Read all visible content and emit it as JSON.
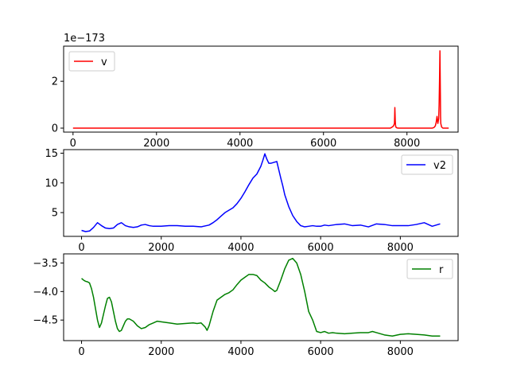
{
  "chart_data": [
    {
      "type": "line",
      "offset_label": "1e−173",
      "legend_position": "top-left",
      "series": [
        {
          "name": "v",
          "color": "#ff0000",
          "x": [
            0,
            7600,
            7620,
            7650,
            7680,
            7700,
            7705,
            7710,
            7715,
            7720,
            7725,
            7730,
            7740,
            7760,
            7800,
            8600,
            8640,
            8660,
            8680,
            8700,
            8720,
            8740,
            8760,
            8770,
            8780,
            8790,
            8800,
            8805,
            8810,
            8830,
            8860,
            9000
          ],
          "values": [
            0,
            0,
            0.02,
            0.05,
            0.1,
            0.2,
            0.5,
            0.88,
            0.6,
            0.3,
            0.15,
            0.08,
            0.03,
            0.01,
            0,
            0,
            0.02,
            0.05,
            0.1,
            0.25,
            0.5,
            0.2,
            0.4,
            1.0,
            2.0,
            3.3,
            1.5,
            0.5,
            0.2,
            0.05,
            0,
            0
          ]
        }
      ],
      "xlim": [
        -225,
        9225
      ],
      "ylim": [
        -0.17,
        3.5
      ],
      "xticks": [
        0,
        2000,
        4000,
        6000,
        8000
      ],
      "yticks": [
        0,
        2
      ],
      "xticklabels": [
        "0",
        "2000",
        "4000",
        "6000",
        "8000"
      ],
      "yticklabels": [
        "0",
        "2"
      ]
    },
    {
      "type": "line",
      "legend_position": "top-right",
      "series": [
        {
          "name": "v2",
          "color": "#0000ff",
          "x": [
            0,
            100,
            200,
            300,
            400,
            500,
            600,
            700,
            800,
            900,
            1000,
            1100,
            1200,
            1300,
            1400,
            1500,
            1600,
            1700,
            1800,
            2000,
            2200,
            2400,
            2600,
            2800,
            3000,
            3200,
            3300,
            3400,
            3500,
            3600,
            3700,
            3800,
            3900,
            4000,
            4100,
            4200,
            4300,
            4400,
            4500,
            4550,
            4600,
            4650,
            4700,
            4750,
            4800,
            4900,
            5000,
            5050,
            5100,
            5200,
            5300,
            5400,
            5500,
            5600,
            5700,
            5800,
            5900,
            6000,
            6100,
            6200,
            6400,
            6600,
            6800,
            7000,
            7200,
            7400,
            7600,
            7800,
            8000,
            8200,
            8400,
            8600,
            8800,
            9000
          ],
          "values": [
            2.0,
            1.8,
            1.9,
            2.5,
            3.3,
            2.8,
            2.4,
            2.3,
            2.4,
            3.0,
            3.3,
            2.8,
            2.6,
            2.5,
            2.6,
            2.9,
            3.0,
            2.8,
            2.7,
            2.7,
            2.8,
            2.8,
            2.7,
            2.7,
            2.6,
            2.9,
            3.3,
            3.8,
            4.4,
            5.0,
            5.4,
            5.8,
            6.5,
            7.4,
            8.5,
            9.7,
            10.8,
            11.5,
            12.8,
            13.8,
            14.9,
            14.0,
            13.3,
            13.3,
            13.4,
            13.6,
            10.8,
            9.5,
            8.0,
            6.0,
            4.5,
            3.5,
            2.8,
            2.6,
            2.7,
            2.8,
            2.7,
            2.7,
            2.9,
            2.8,
            3.0,
            3.1,
            2.8,
            2.9,
            2.6,
            3.1,
            3.0,
            2.8,
            2.8,
            2.8,
            3.0,
            3.3,
            2.7,
            3.1
          ]
        }
      ],
      "xlim": [
        -450,
        9450
      ],
      "ylim": [
        1.0,
        15.6
      ],
      "xticks": [
        0,
        2000,
        4000,
        6000,
        8000
      ],
      "yticks": [
        5,
        10,
        15
      ],
      "xticklabels": [
        "0",
        "2000",
        "4000",
        "6000",
        "8000"
      ],
      "yticklabels": [
        "5",
        "10",
        "15"
      ]
    },
    {
      "type": "line",
      "legend_position": "top-right",
      "series": [
        {
          "name": "r",
          "color": "#008000",
          "x": [
            0,
            50,
            100,
            150,
            200,
            250,
            300,
            350,
            400,
            450,
            500,
            550,
            600,
            650,
            700,
            750,
            800,
            850,
            900,
            950,
            1000,
            1050,
            1100,
            1150,
            1200,
            1300,
            1400,
            1500,
            1600,
            1700,
            1800,
            1900,
            2000,
            2200,
            2400,
            2600,
            2800,
            2900,
            3000,
            3100,
            3150,
            3200,
            3300,
            3400,
            3500,
            3600,
            3700,
            3800,
            3900,
            4000,
            4100,
            4200,
            4300,
            4400,
            4500,
            4600,
            4700,
            4800,
            4850,
            4900,
            5000,
            5100,
            5200,
            5300,
            5400,
            5500,
            5600,
            5700,
            5800,
            5900,
            6000,
            6100,
            6200,
            6300,
            6400,
            6600,
            6800,
            7000,
            7200,
            7300,
            7400,
            7600,
            7800,
            8000,
            8200,
            8400,
            8600,
            8800,
            9000
          ],
          "values": [
            -3.77,
            -3.8,
            -3.82,
            -3.83,
            -3.85,
            -3.95,
            -4.1,
            -4.3,
            -4.5,
            -4.63,
            -4.55,
            -4.4,
            -4.25,
            -4.12,
            -4.1,
            -4.18,
            -4.35,
            -4.52,
            -4.65,
            -4.7,
            -4.68,
            -4.6,
            -4.52,
            -4.48,
            -4.48,
            -4.52,
            -4.6,
            -4.65,
            -4.63,
            -4.58,
            -4.55,
            -4.52,
            -4.53,
            -4.55,
            -4.57,
            -4.56,
            -4.55,
            -4.56,
            -4.55,
            -4.62,
            -4.68,
            -4.6,
            -4.35,
            -4.15,
            -4.1,
            -4.05,
            -4.02,
            -3.97,
            -3.88,
            -3.8,
            -3.75,
            -3.7,
            -3.7,
            -3.72,
            -3.8,
            -3.85,
            -3.92,
            -3.97,
            -4.0,
            -3.98,
            -3.8,
            -3.6,
            -3.45,
            -3.42,
            -3.5,
            -3.7,
            -4.0,
            -4.35,
            -4.5,
            -4.7,
            -4.72,
            -4.7,
            -4.73,
            -4.72,
            -4.73,
            -4.74,
            -4.73,
            -4.72,
            -4.72,
            -4.7,
            -4.72,
            -4.76,
            -4.78,
            -4.75,
            -4.74,
            -4.75,
            -4.76,
            -4.78,
            -4.78
          ]
        }
      ],
      "xlim": [
        -450,
        9450
      ],
      "ylim": [
        -4.86,
        -3.34
      ],
      "xticks": [
        0,
        2000,
        4000,
        6000,
        8000
      ],
      "yticks": [
        -4.5,
        -4.0,
        -3.5
      ],
      "xticklabels": [
        "0",
        "2000",
        "4000",
        "6000",
        "8000"
      ],
      "yticklabels": [
        "−4.5",
        "−4.0",
        "−3.5"
      ]
    }
  ]
}
